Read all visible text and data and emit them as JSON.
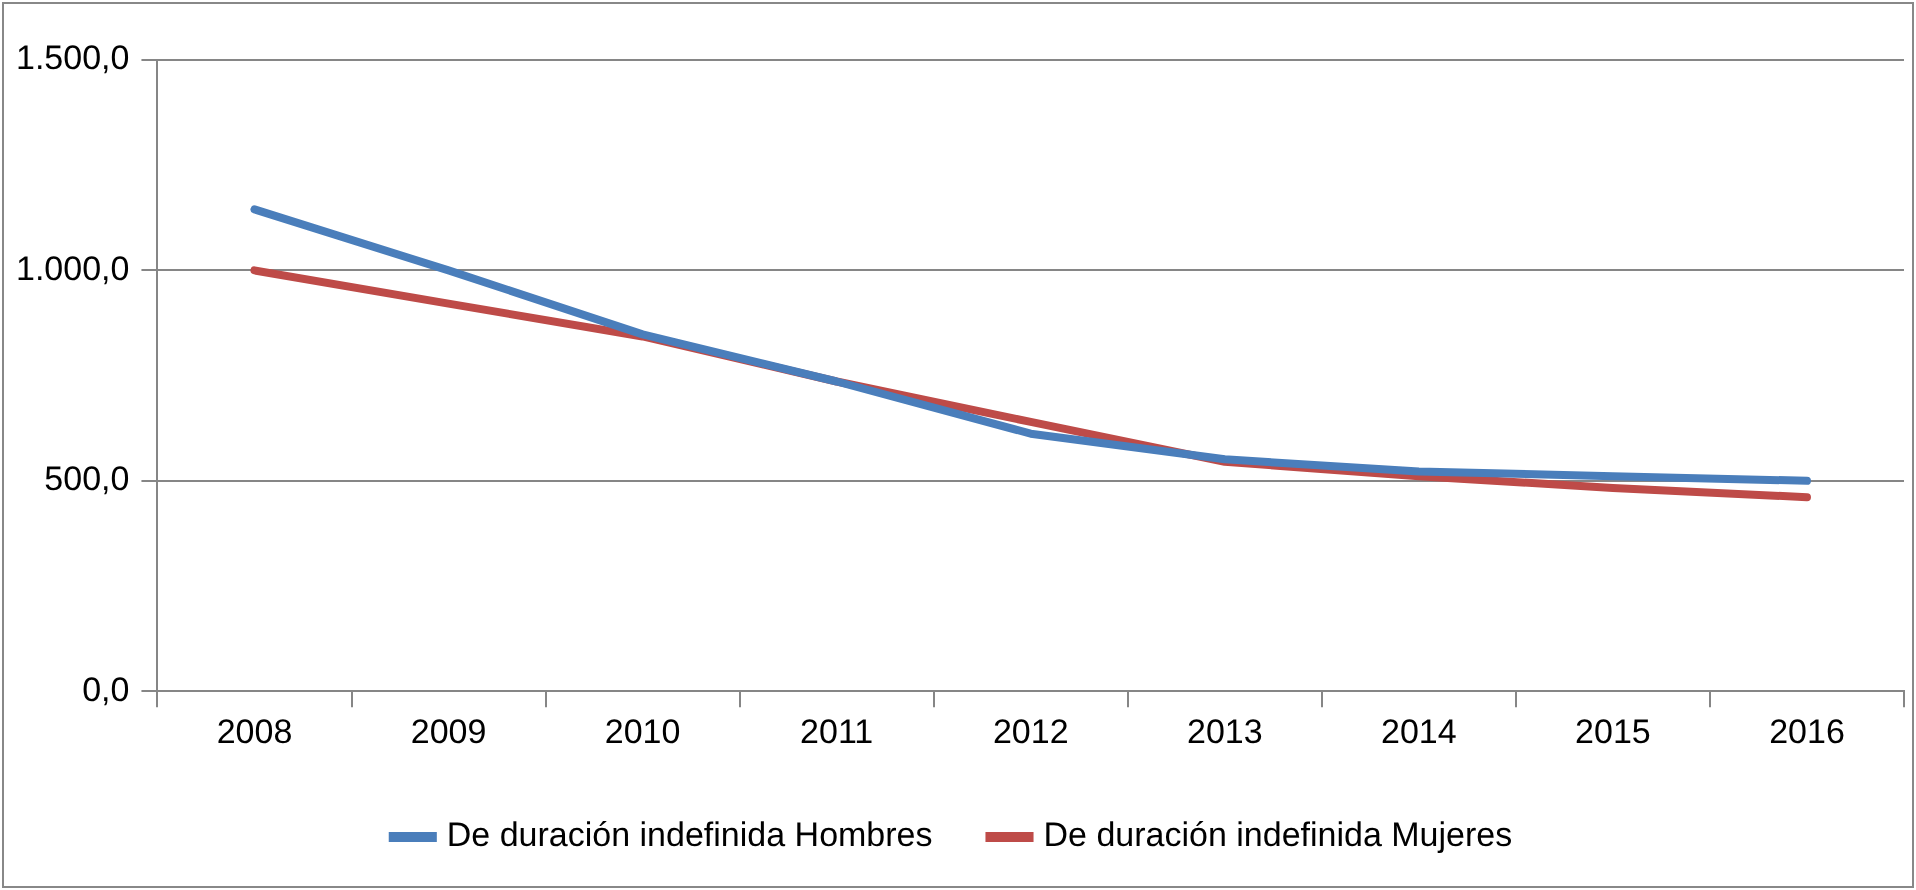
{
  "chart_data": {
    "type": "line",
    "categories": [
      "2008",
      "2009",
      "2010",
      "2011",
      "2012",
      "2013",
      "2014",
      "2015",
      "2016"
    ],
    "series": [
      {
        "name": "De duración indefinida Hombres",
        "color": "#4a7ebb",
        "values": [
          1145,
          1000,
          848,
          736,
          612,
          551,
          522,
          511,
          500
        ]
      },
      {
        "name": "De duración indefinida Mujeres",
        "color": "#be4b48",
        "values": [
          1000,
          921,
          843,
          736,
          640,
          545,
          511,
          483,
          461
        ]
      }
    ],
    "ylim": [
      0,
      1500
    ],
    "yticks": [
      {
        "value": 0,
        "label": "0,0"
      },
      {
        "value": 500,
        "label": "500,0"
      },
      {
        "value": 1000,
        "label": "1.000,0"
      },
      {
        "value": 1500,
        "label": "1.500,0"
      }
    ],
    "grid": "y",
    "legend": "bottom",
    "marker": "none",
    "line_style": "solid"
  }
}
